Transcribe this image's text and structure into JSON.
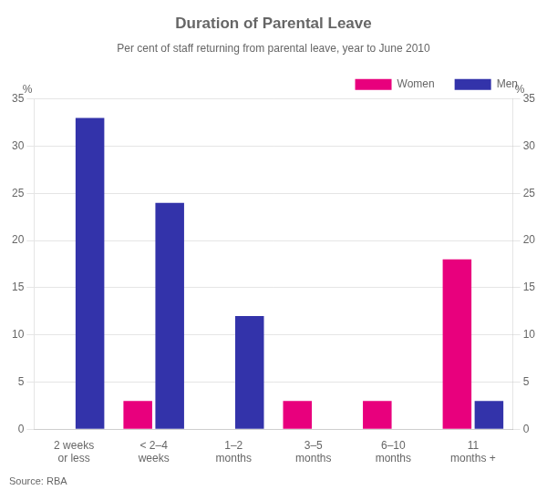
{
  "chart_data": {
    "type": "bar",
    "title": "Duration of Parental Leave",
    "subtitle": "Per cent of staff returning from parental leave, year to June 2010",
    "source": "Source: RBA",
    "categories": [
      "2 weeks\nor less",
      "< 2–4\nweeks",
      "1–2\nmonths",
      "3–5\nmonths",
      "6–10\nmonths",
      "11\nmonths +"
    ],
    "series": [
      {
        "name": "Women",
        "color": "#E8007D",
        "values": [
          0,
          3,
          0,
          3,
          3,
          18
        ]
      },
      {
        "name": "Men",
        "color": "#3333AA",
        "values": [
          33,
          24,
          12,
          0,
          0,
          3
        ]
      }
    ],
    "ylim": [
      0,
      35
    ],
    "yticks": [
      0,
      5,
      10,
      15,
      20,
      25,
      30,
      35
    ],
    "y2lim": [
      0,
      35
    ],
    "y2ticks": [
      0,
      5,
      10,
      15,
      20,
      25,
      30,
      35
    ],
    "ylabel": "%",
    "y2label": "%",
    "grid": true,
    "legend": "upper right"
  }
}
